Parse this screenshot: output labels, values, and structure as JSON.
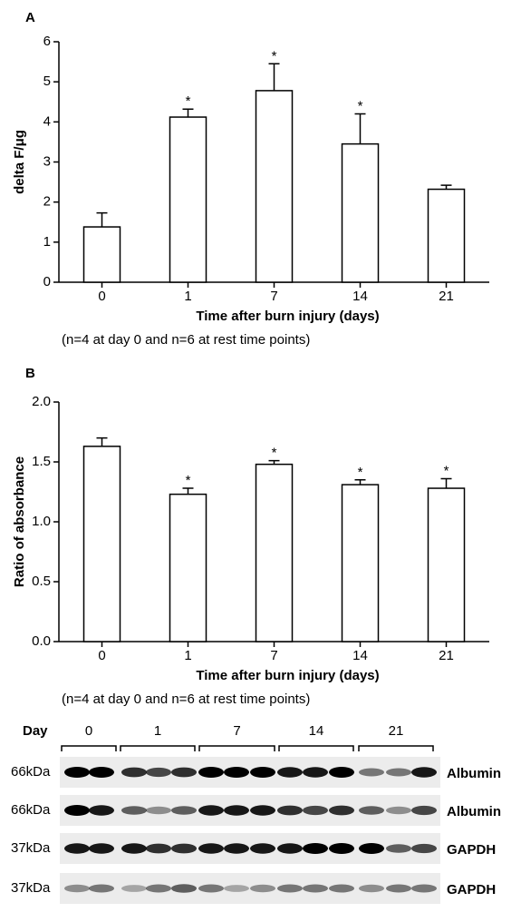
{
  "chart_data": [
    {
      "type": "bar",
      "panel": "A",
      "ylabel": "delta F/μg",
      "xlabel": "Time after burn injury (days)",
      "note": "(n=4 at day 0 and n=6 at rest time points)",
      "categories": [
        "0",
        "1",
        "7",
        "14",
        "21"
      ],
      "values": [
        1.38,
        4.12,
        4.78,
        3.45,
        2.32
      ],
      "errors": [
        0.35,
        0.2,
        0.67,
        0.75,
        0.1
      ],
      "significance": [
        null,
        "*",
        "*",
        "*",
        null
      ],
      "color": "#ffffff",
      "ylim": [
        0,
        6
      ],
      "yticks": [
        0,
        1,
        2,
        3,
        4,
        5,
        6
      ]
    },
    {
      "type": "bar",
      "panel": "B",
      "ylabel": "Ratio of absorbance",
      "xlabel": "Time after burn injury (days)",
      "note": "(n=4 at day 0 and n=6 at rest time points)",
      "categories": [
        "0",
        "1",
        "7",
        "14",
        "21"
      ],
      "values": [
        1.63,
        1.23,
        1.48,
        1.31,
        1.28
      ],
      "errors": [
        0.07,
        0.05,
        0.03,
        0.04,
        0.08
      ],
      "significance": [
        null,
        "*",
        "*",
        "*",
        "*"
      ],
      "color": "#ffffff",
      "ylim": [
        0,
        2
      ],
      "yticks": [
        {
          "value": 0,
          "label": "0.0"
        },
        {
          "value": 0.5,
          "label": "0.5"
        },
        {
          "value": 1,
          "label": "1.0"
        },
        {
          "value": 1.5,
          "label": "1.5"
        },
        {
          "value": 2,
          "label": "2.0"
        }
      ]
    }
  ],
  "blot": {
    "header": "Day",
    "days": [
      "0",
      "1",
      "7",
      "14",
      "21"
    ],
    "rows": [
      {
        "size": "66kDa",
        "label": "Albumin"
      },
      {
        "size": "66kDa",
        "label": "Albumin"
      },
      {
        "size": "37kDa",
        "label": "GAPDH"
      },
      {
        "size": "37kDa",
        "label": "GAPDH"
      }
    ]
  }
}
